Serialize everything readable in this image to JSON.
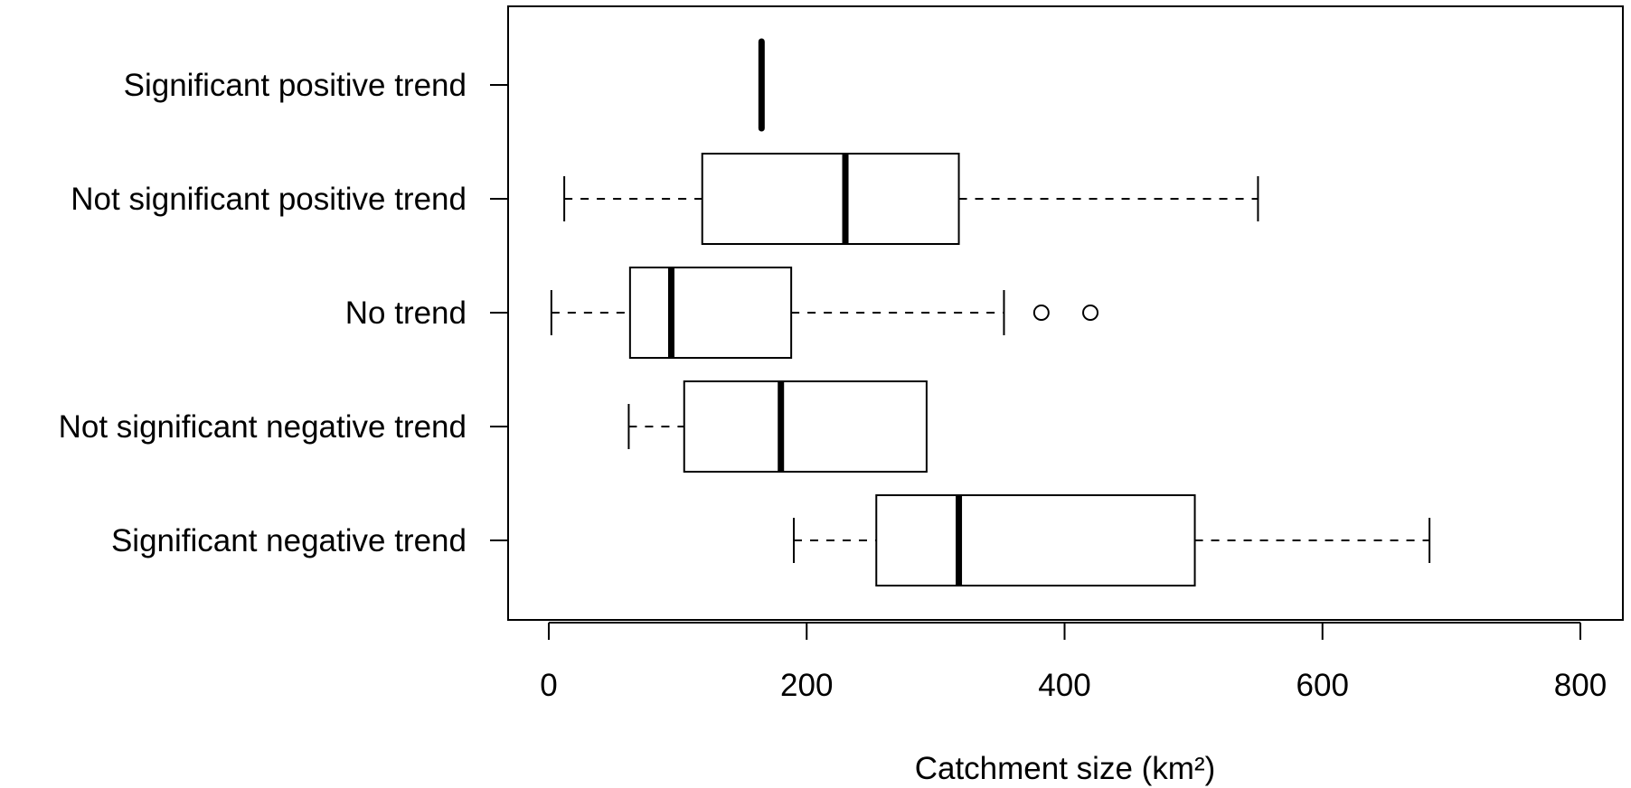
{
  "chart_data": {
    "type": "boxplot",
    "orientation": "horizontal",
    "title": "",
    "xlabel": "Catchment size (km²)",
    "ylabel": "",
    "xlim": [
      -32,
      834
    ],
    "xticks": [
      0,
      200,
      400,
      600,
      800
    ],
    "xtick_labels": [
      "0",
      "200",
      "400",
      "600",
      "800"
    ],
    "grid": false,
    "categories": [
      "Significant negative trend",
      "Not significant negative trend",
      "No trend",
      "Not significant positive trend",
      "Significant positive trend"
    ],
    "boxes": [
      {
        "category": "Significant negative trend",
        "whisker_low": 190,
        "q1": 254,
        "median": 318,
        "q3": 501,
        "whisker_high": 683,
        "outliers": []
      },
      {
        "category": "Not significant negative trend",
        "whisker_low": 62,
        "q1": 105,
        "median": 180,
        "q3": 293,
        "whisker_high": 293,
        "outliers": []
      },
      {
        "category": "No trend",
        "whisker_low": 2,
        "q1": 63,
        "median": 95,
        "q3": 188,
        "whisker_high": 353,
        "outliers": [
          382,
          420
        ]
      },
      {
        "category": "Not significant positive trend",
        "whisker_low": 12,
        "q1": 119,
        "median": 230,
        "q3": 318,
        "whisker_high": 550,
        "outliers": []
      },
      {
        "category": "Significant positive trend",
        "whisker_low": 165,
        "q1": 165,
        "median": 165,
        "q3": 165,
        "whisker_high": 165,
        "outliers": []
      }
    ]
  }
}
